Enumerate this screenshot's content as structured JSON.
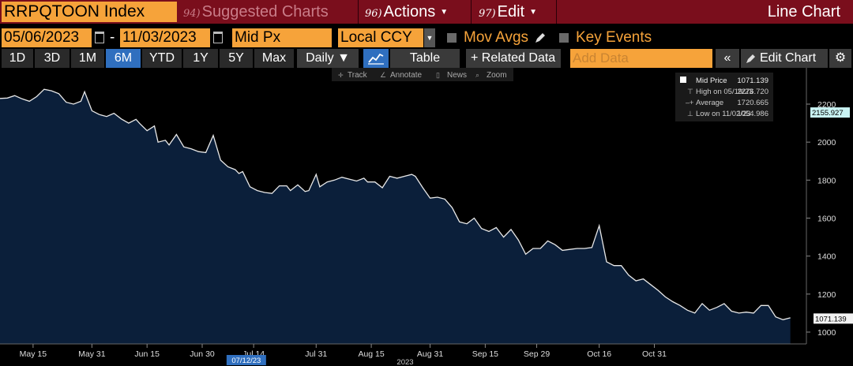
{
  "header": {
    "ticker": "RRPQTOON Index",
    "suggested": {
      "num": "94)",
      "label": "Suggested Charts"
    },
    "actions": {
      "num": "96)",
      "label": "Actions"
    },
    "edit": {
      "num": "97)",
      "label": "Edit"
    },
    "view_title": "Line Chart"
  },
  "controls": {
    "start_date": "05/06/2023",
    "end_date": "11/03/2023",
    "separator": "-",
    "field": "Mid Px",
    "currency": "Local CCY",
    "mov_avgs": "Mov Avgs",
    "key_events": "Key Events"
  },
  "periods": [
    "1D",
    "3D",
    "1M",
    "6M",
    "YTD",
    "1Y",
    "5Y",
    "Max"
  ],
  "active_period": "6M",
  "frequency": "Daily ▼",
  "table_label": "Table",
  "related_label": "+ Related Data",
  "add_data_placeholder": "Add Data",
  "edit_chart_label": "Edit Chart",
  "chart_tools": [
    "Track",
    "Annotate",
    "News",
    "Zoom"
  ],
  "legend": {
    "rows": [
      {
        "label": "Mid Price",
        "value": "1071.139"
      },
      {
        "label": "High on 05/19/23",
        "value": "2276.720"
      },
      {
        "label": "Average",
        "value": "1720.665"
      },
      {
        "label": "Low on 11/02/23",
        "value": "1054.986"
      }
    ]
  },
  "colors": {
    "orange": "#f6a33a",
    "header_red": "#7a0e1c",
    "area_fill": "#0b1f3a",
    "line": "#e8e8e8",
    "active_blue": "#2f6fbf"
  },
  "chart_data": {
    "type": "area",
    "year_label": "2023",
    "highlight_date_label": "07/12/23",
    "ylim": [
      950,
      2390
    ],
    "y_ticks": [
      1000,
      1200,
      1400,
      1600,
      1800,
      2000,
      2200
    ],
    "x_ticks": [
      "May 15",
      "May 31",
      "Jun 15",
      "Jun 30",
      "Jul 14",
      "Jul 31",
      "Aug 15",
      "Aug 31",
      "Sep 15",
      "Sep 29",
      "Oct 16",
      "Oct 31"
    ],
    "x_tick_days": [
      9,
      25,
      40,
      55,
      69,
      86,
      101,
      117,
      132,
      146,
      163,
      178
    ],
    "price_labels": {
      "last": "1071.139",
      "average_marker": "2155.927"
    },
    "average_marker_value": 2155.927,
    "series": [
      {
        "name": "Mid Price",
        "points": [
          [
            0,
            2230
          ],
          [
            2,
            2232
          ],
          [
            4,
            2245
          ],
          [
            6,
            2228
          ],
          [
            8,
            2215
          ],
          [
            10,
            2240
          ],
          [
            12,
            2278
          ],
          [
            14,
            2270
          ],
          [
            16,
            2255
          ],
          [
            18,
            2210
          ],
          [
            20,
            2200
          ],
          [
            22,
            2215
          ],
          [
            23,
            2265
          ],
          [
            25,
            2165
          ],
          [
            27,
            2145
          ],
          [
            29,
            2135
          ],
          [
            31,
            2152
          ],
          [
            33,
            2122
          ],
          [
            35,
            2100
          ],
          [
            37,
            2120
          ],
          [
            38,
            2098
          ],
          [
            40,
            2060
          ],
          [
            42,
            2085
          ],
          [
            43,
            2000
          ],
          [
            45,
            2010
          ],
          [
            46,
            1985
          ],
          [
            48,
            2040
          ],
          [
            50,
            1975
          ],
          [
            52,
            1965
          ],
          [
            54,
            1950
          ],
          [
            56,
            1945
          ],
          [
            58,
            2035
          ],
          [
            60,
            1905
          ],
          [
            62,
            1870
          ],
          [
            64,
            1855
          ],
          [
            65,
            1835
          ],
          [
            66,
            1845
          ],
          [
            68,
            1765
          ],
          [
            70,
            1745
          ],
          [
            72,
            1735
          ],
          [
            74,
            1730
          ],
          [
            76,
            1770
          ],
          [
            78,
            1770
          ],
          [
            79,
            1745
          ],
          [
            81,
            1775
          ],
          [
            83,
            1740
          ],
          [
            84,
            1745
          ],
          [
            86,
            1830
          ],
          [
            87,
            1765
          ],
          [
            89,
            1790
          ],
          [
            91,
            1800
          ],
          [
            93,
            1815
          ],
          [
            95,
            1805
          ],
          [
            97,
            1795
          ],
          [
            99,
            1810
          ],
          [
            100,
            1790
          ],
          [
            102,
            1790
          ],
          [
            104,
            1760
          ],
          [
            106,
            1820
          ],
          [
            108,
            1810
          ],
          [
            110,
            1820
          ],
          [
            112,
            1830
          ],
          [
            113,
            1820
          ],
          [
            115,
            1760
          ],
          [
            117,
            1705
          ],
          [
            119,
            1710
          ],
          [
            121,
            1700
          ],
          [
            123,
            1655
          ],
          [
            125,
            1580
          ],
          [
            127,
            1570
          ],
          [
            129,
            1600
          ],
          [
            131,
            1545
          ],
          [
            133,
            1530
          ],
          [
            135,
            1550
          ],
          [
            137,
            1500
          ],
          [
            139,
            1540
          ],
          [
            141,
            1485
          ],
          [
            143,
            1410
          ],
          [
            145,
            1440
          ],
          [
            147,
            1440
          ],
          [
            149,
            1480
          ],
          [
            151,
            1460
          ],
          [
            153,
            1430
          ],
          [
            155,
            1435
          ],
          [
            157,
            1440
          ],
          [
            159,
            1440
          ],
          [
            161,
            1445
          ],
          [
            163,
            1560
          ],
          [
            165,
            1370
          ],
          [
            167,
            1350
          ],
          [
            169,
            1350
          ],
          [
            171,
            1300
          ],
          [
            173,
            1270
          ],
          [
            175,
            1280
          ],
          [
            177,
            1250
          ],
          [
            179,
            1220
          ],
          [
            181,
            1185
          ],
          [
            183,
            1160
          ],
          [
            185,
            1140
          ],
          [
            187,
            1115
          ],
          [
            189,
            1100
          ],
          [
            191,
            1150
          ],
          [
            193,
            1115
          ],
          [
            195,
            1130
          ],
          [
            197,
            1150
          ],
          [
            199,
            1110
          ],
          [
            201,
            1100
          ],
          [
            203,
            1105
          ],
          [
            205,
            1100
          ],
          [
            207,
            1140
          ],
          [
            209,
            1140
          ],
          [
            211,
            1080
          ],
          [
            213,
            1065
          ],
          [
            215,
            1075
          ]
        ]
      }
    ]
  }
}
